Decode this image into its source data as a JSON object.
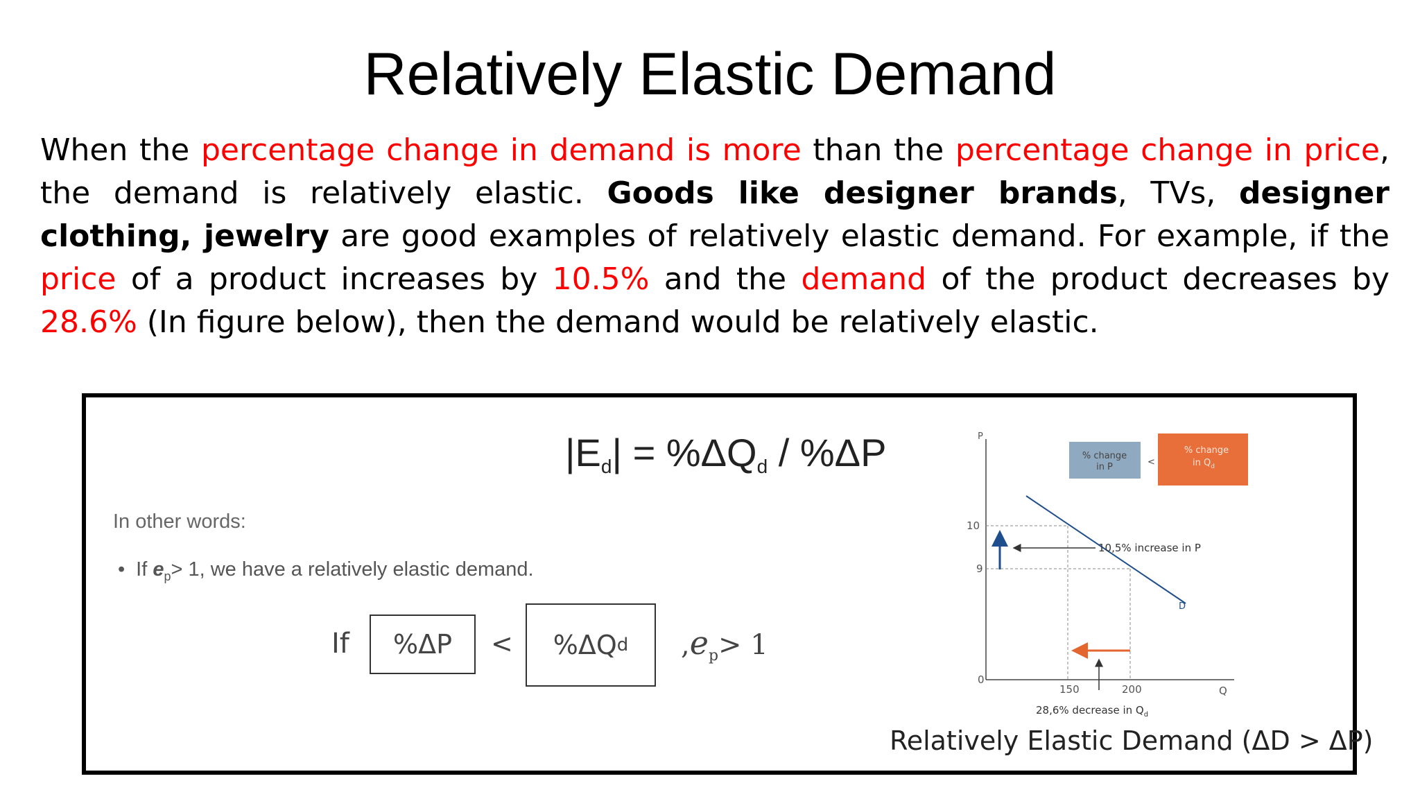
{
  "title": "Relatively Elastic Demand",
  "paragraph": {
    "s1": "When the ",
    "s2": "percentage change in demand is more",
    "s3": " than the ",
    "s4": "percentage change in price",
    "s5": ", the demand is relatively elastic. ",
    "s6": "Goods like designer brands",
    "s7": ", TVs, ",
    "s8": "designer clothing, jewelry",
    "s9": " are good examples of relatively elastic demand. For example, if the ",
    "s10": "price",
    "s11": " of a product increases by ",
    "s12": "10.5%",
    "s13": " and the ",
    "s14": "demand",
    "s15": " of the product decreases by ",
    "s16": "28.6%",
    "s17": " (In figure below), then the demand would be relatively elastic."
  },
  "colors": {
    "highlight": "#ff0000",
    "blue_box": "#8fa9c0",
    "orange_box": "#e86e3a",
    "arrow_orange": "#e4662f",
    "demand_line": "#1f4e8c"
  },
  "figure": {
    "formula": {
      "lhs_open": "|E",
      "lhs_sub": "d",
      "lhs_close": "| = %ΔQ",
      "q_sub": "d",
      "rest": " / %ΔP"
    },
    "in_other_words": "In other words:",
    "bullet": {
      "pre": "If ",
      "e": "e",
      "e_sub": "p",
      "post": "> 1, we have a relatively elastic demand."
    },
    "inequality": {
      "if": "If",
      "left": "%ΔP",
      "op": "<",
      "right": "%ΔQ",
      "right_sub": "d",
      "tail_comma": ",",
      "tail_e": "e",
      "tail_sub": "p",
      "tail_rest": "> 1"
    },
    "caption": "Relatively Elastic Demand (ΔD > ΔP)",
    "graph": {
      "y_axis_label": "P",
      "x_axis_label": "Q",
      "origin": "0",
      "y_ticks": [
        "10",
        "9"
      ],
      "x_ticks": [
        "150",
        "200"
      ],
      "curve_label": "D",
      "price_annotation": "10,5% increase in P",
      "qty_annotation": "28,6% decrease in Q",
      "qty_annotation_sub": "d",
      "box_p": {
        "line1": "% change",
        "line2": "in P"
      },
      "box_lt": "<",
      "box_q": {
        "line1": "% change",
        "line2": "in Q",
        "sub": "d"
      }
    }
  }
}
